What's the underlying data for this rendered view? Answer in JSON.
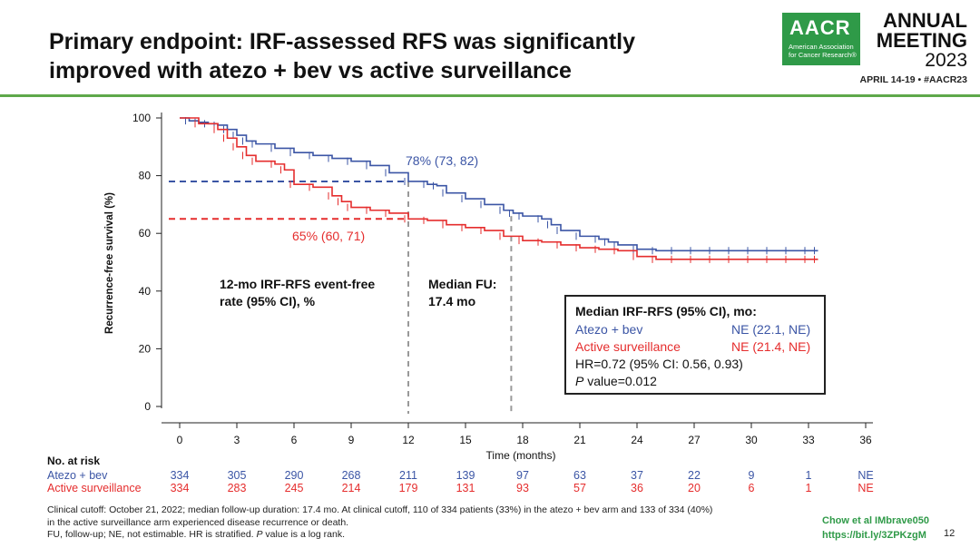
{
  "slide": {
    "title_line1": "Primary endpoint: IRF-assessed RFS was significantly",
    "title_line2": "improved with atezo + bev vs active surveillance",
    "page_number": "12"
  },
  "branding": {
    "logo_text": "AACR",
    "logo_subtext": "American Association for Cancer Research®",
    "meeting_line1": "ANNUAL",
    "meeting_line2": "MEETING",
    "meeting_year": "2023",
    "dates": "APRIL 14-19 • #AACR23",
    "brand_color": "#2f9a48"
  },
  "annotations": {
    "landmark_12mo_line1": "12-mo IRF-RFS event-free",
    "landmark_12mo_line2": "rate (95% CI), %",
    "median_fu_line1": "Median FU:",
    "median_fu_line2": "17.4 mo",
    "atezo_12mo_label": "78% (73, 82)",
    "active_12mo_label": "65% (60, 71)"
  },
  "legend": {
    "title": "Median IRF-RFS (95% CI), mo:",
    "atezo_name": "Atezo + bev",
    "atezo_value": "NE (22.1, NE)",
    "active_name": "Active surveillance",
    "active_value": "NE (21.4, NE)",
    "hr_text": "HR=0.72 (95% CI: 0.56, 0.93)",
    "p_italic": "P",
    "p_rest": " value=0.012"
  },
  "risk_table": {
    "header": "No. at risk",
    "atezo_label": "Atezo + bev",
    "active_label": "Active surveillance",
    "atezo_counts": [
      "334",
      "305",
      "290",
      "268",
      "211",
      "139",
      "97",
      "63",
      "37",
      "22",
      "9",
      "1",
      "NE"
    ],
    "active_counts": [
      "334",
      "283",
      "245",
      "214",
      "179",
      "131",
      "93",
      "57",
      "36",
      "20",
      "6",
      "1",
      "NE"
    ]
  },
  "footnotes": {
    "line1": "Clinical cutoff: October 21, 2022; median follow-up duration: 17.4 mo. At clinical cutoff, 110 of 334 patients (33%) in the atezo + bev arm and 133 of 334 (40%)",
    "line2": "in the active surveillance arm experienced disease recurrence or death.",
    "line3_a": "FU, follow-up; NE, not estimable. HR is stratified. ",
    "line3_p": "P",
    "line3_b": " value is a log rank."
  },
  "citation": {
    "line1": "Chow et al IMbrave050",
    "line2": "https://bit.ly/3ZPKzgM"
  },
  "chart_data": {
    "type": "line",
    "xlabel": "Time (months)",
    "ylabel": "Recurrence-free survival (%)",
    "xlim": [
      0,
      36
    ],
    "ylim": [
      0,
      100
    ],
    "xticks": [
      0,
      3,
      6,
      9,
      12,
      15,
      18,
      21,
      24,
      27,
      30,
      33,
      36
    ],
    "yticks": [
      0,
      20,
      40,
      60,
      80,
      100
    ],
    "colors": {
      "atezo": "#3b55a5",
      "active": "#e52d2d",
      "reference": "#999999"
    },
    "reference_lines": {
      "landmark_month": 12,
      "median_fu_month": 17.4,
      "atezo_12mo": 78,
      "active_12mo": 65
    },
    "series": [
      {
        "name": "Atezo + bev",
        "x": [
          0,
          0.5,
          1,
          1.5,
          2,
          2.5,
          3,
          3.5,
          4,
          5,
          6,
          7,
          8,
          9,
          10,
          11,
          12,
          13,
          13.5,
          14,
          15,
          16,
          17,
          17.5,
          18,
          19,
          19.5,
          20,
          21,
          22,
          22.5,
          23,
          24,
          25,
          26,
          27,
          28,
          29,
          30,
          31,
          32,
          33,
          33.5
        ],
        "y": [
          100,
          99,
          98.5,
          98,
          97.5,
          96,
          94,
          92,
          91,
          89.5,
          88,
          87,
          86,
          85,
          83.5,
          81,
          78,
          77,
          76.5,
          74,
          72,
          70,
          68,
          67,
          66,
          65,
          63,
          61,
          59,
          58,
          57,
          56,
          54.5,
          54,
          54,
          54,
          54,
          54,
          54,
          54,
          54,
          54,
          54
        ]
      },
      {
        "name": "Active surveillance",
        "x": [
          0,
          1,
          2,
          2.5,
          3,
          3.5,
          4,
          5,
          5.5,
          6,
          7,
          8,
          8.5,
          9,
          10,
          11,
          12,
          13,
          14,
          15,
          16,
          17,
          18,
          19,
          20,
          21,
          22,
          23,
          24,
          25,
          26,
          27,
          28,
          29,
          30,
          31,
          32,
          33,
          33.5
        ],
        "y": [
          100,
          98,
          96,
          93,
          90,
          87,
          85,
          84,
          82,
          77,
          76,
          73,
          71,
          69,
          68,
          67,
          65,
          64.5,
          63,
          62,
          61,
          59,
          57.5,
          57,
          56,
          55,
          54.5,
          54,
          52,
          51,
          51,
          51,
          51,
          51,
          51,
          51,
          51,
          51,
          51
        ]
      }
    ]
  }
}
